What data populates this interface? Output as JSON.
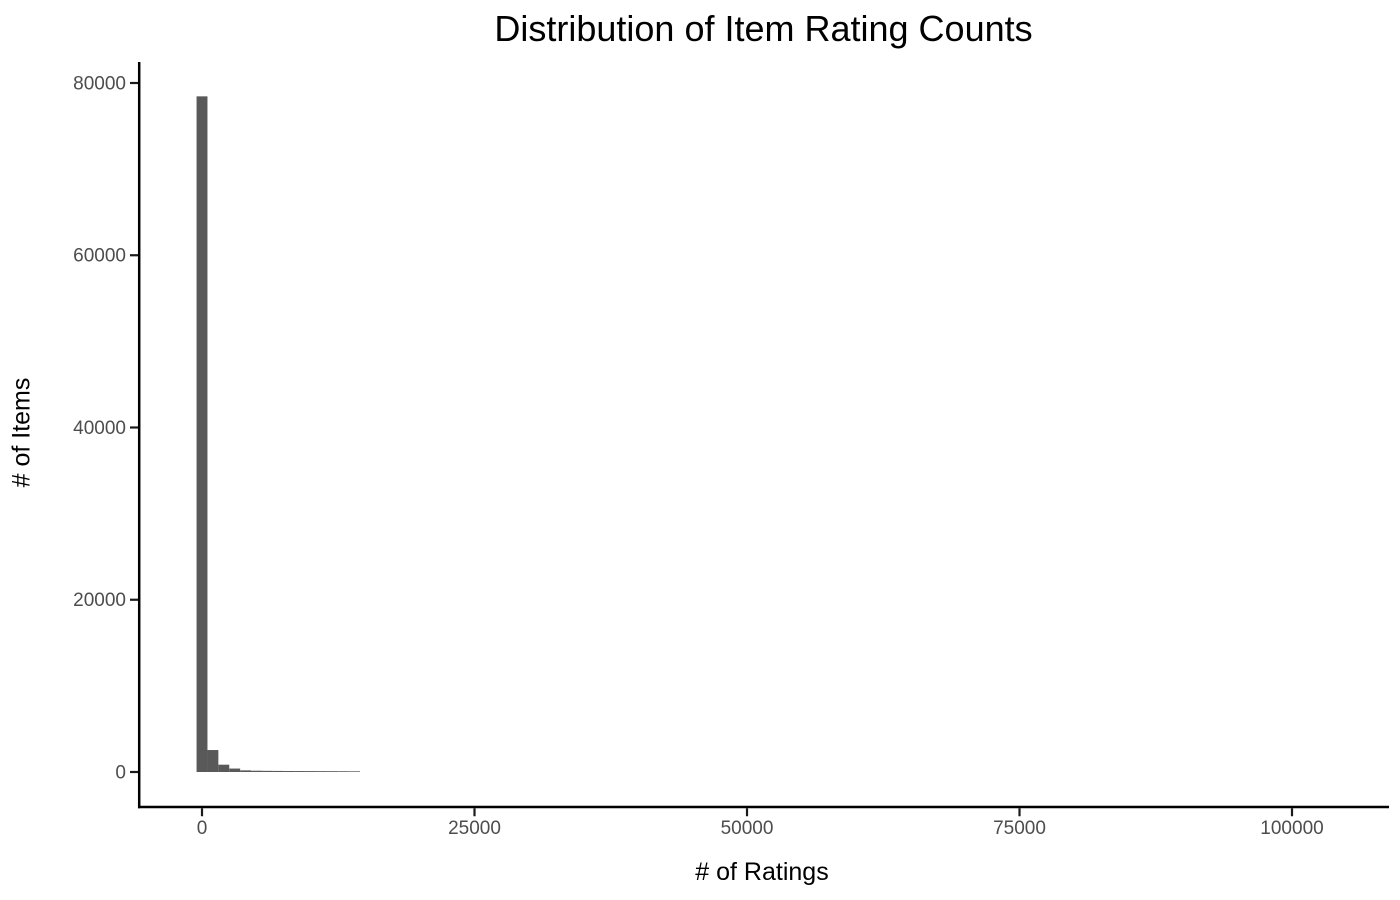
{
  "chart_data": {
    "type": "bar",
    "subtype": "histogram",
    "title": "Distribution of Item Rating Counts",
    "xlabel": "# of Ratings",
    "ylabel": "# of Items",
    "bar_color": "#595959",
    "axis_line_color": "#000000",
    "tick_color": "#1a1a1a",
    "tick_label_color": "#4d4d4d",
    "grid": "off",
    "legend": "none",
    "bin_width": 1000,
    "bins": [
      {
        "center": 0,
        "count": 78450
      },
      {
        "center": 1000,
        "count": 2550
      },
      {
        "center": 2000,
        "count": 850
      },
      {
        "center": 3000,
        "count": 400
      },
      {
        "center": 4000,
        "count": 190
      },
      {
        "center": 5000,
        "count": 150
      },
      {
        "center": 6000,
        "count": 135
      },
      {
        "center": 7000,
        "count": 125
      },
      {
        "center": 8000,
        "count": 115
      },
      {
        "center": 9000,
        "count": 110
      },
      {
        "center": 10000,
        "count": 105
      },
      {
        "center": 11000,
        "count": 100
      },
      {
        "center": 12000,
        "count": 95
      },
      {
        "center": 13000,
        "count": 88
      },
      {
        "center": 14000,
        "count": 80
      }
    ],
    "x_ticks": [
      0,
      25000,
      50000,
      75000,
      100000
    ],
    "y_ticks": [
      0,
      20000,
      40000,
      60000,
      80000
    ],
    "xlim": [
      -5872,
      108898
    ],
    "ylim": [
      -4064,
      82438
    ]
  }
}
